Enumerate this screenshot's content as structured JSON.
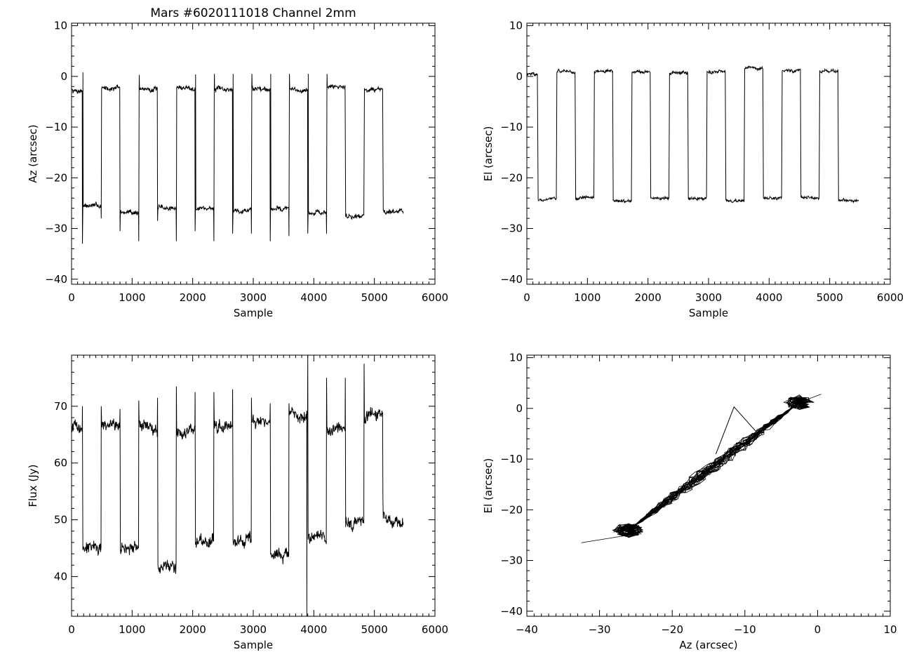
{
  "page": {
    "title": "Mars #6020111018 Channel 2mm"
  },
  "chart_data": [
    {
      "id": "az-vs-sample",
      "type": "line",
      "title": "Mars #6020111018 Channel 2mm",
      "xlabel": "Sample",
      "ylabel": "Az (arcsec)",
      "xlim": [
        0,
        6000
      ],
      "ylim": [
        -41,
        10.5
      ],
      "xticks": [
        0,
        1000,
        2000,
        3000,
        4000,
        5000,
        6000
      ],
      "yticks": [
        -40,
        -30,
        -20,
        -10,
        0,
        10
      ],
      "grid": false,
      "signal": {
        "start": 0,
        "end": 5480,
        "initial": -2.8,
        "transitions": [
          180,
          490,
          800,
          1110,
          1420,
          1730,
          2040,
          2350,
          2660,
          2970,
          3280,
          3590,
          3900,
          4210,
          4520,
          4830,
          5140
        ],
        "levels": [
          -25.5,
          -2.3,
          -26.8,
          -2.5,
          -26,
          -2.2,
          -26,
          -2.6,
          -26.3,
          -2.4,
          -26,
          -2.7,
          -27,
          -2,
          -27.5,
          -2.6,
          -26.5
        ],
        "spikes": [
          -33,
          0.8,
          -28,
          0,
          -30.5,
          0,
          -32.5,
          0.3,
          -28.5,
          0,
          -32.5,
          0,
          -30.5,
          0.4,
          -32.5,
          0.5,
          -31,
          0.5,
          -31,
          0.5,
          -32.5,
          0.5,
          -31.5,
          0.5,
          -31,
          0.5,
          -31,
          0.5
        ],
        "noise": 0.7
      }
    },
    {
      "id": "el-vs-sample",
      "type": "line",
      "title": "",
      "xlabel": "Sample",
      "ylabel": "El (arcsec)",
      "xlim": [
        0,
        6000
      ],
      "ylim": [
        -41,
        10.5
      ],
      "xticks": [
        0,
        1000,
        2000,
        3000,
        4000,
        5000,
        6000
      ],
      "yticks": [
        -40,
        -30,
        -20,
        -10,
        0,
        10
      ],
      "grid": false,
      "signal": {
        "start": 0,
        "end": 5480,
        "initial": 0.4,
        "transitions": [
          180,
          490,
          800,
          1110,
          1420,
          1730,
          2040,
          2350,
          2660,
          2970,
          3280,
          3590,
          3900,
          4210,
          4520,
          4830,
          5140
        ],
        "levels": [
          -24.2,
          1.0,
          -24.0,
          1.0,
          -24.6,
          1.0,
          -24.0,
          0.8,
          -24.0,
          0.8,
          -24.6,
          1.6,
          -24.0,
          1.2,
          -24.0,
          1.1,
          -24.6
        ],
        "noise": 0.45
      }
    },
    {
      "id": "flux-vs-sample",
      "type": "line",
      "title": "",
      "xlabel": "Sample",
      "ylabel": "Flux (Jy)",
      "xlim": [
        0,
        6000
      ],
      "ylim": [
        33,
        79
      ],
      "xticks": [
        0,
        1000,
        2000,
        3000,
        4000,
        5000,
        6000
      ],
      "yticks": [
        40,
        50,
        60,
        70
      ],
      "grid": false,
      "signal": {
        "start": 0,
        "end": 5480,
        "initial": 66,
        "transitions": [
          180,
          490,
          800,
          1110,
          1420,
          1730,
          2040,
          2350,
          2660,
          2970,
          3280,
          3590,
          3900,
          4210,
          4520,
          4830,
          5140
        ],
        "levels": [
          45,
          67,
          45,
          66,
          42,
          66,
          46.5,
          66.5,
          46,
          67.5,
          44,
          68.5,
          47,
          66,
          49.5,
          68,
          50
        ],
        "spikes": [
          70,
          70,
          69.5,
          71,
          71.5,
          73.5,
          72.5,
          72.5,
          73,
          71.5,
          70.5,
          70.5,
          79,
          75,
          75,
          77.5,
          54
        ],
        "dips": [
          {
            "x": 3885,
            "y": 33
          }
        ],
        "noise": 1.6
      }
    },
    {
      "id": "el-vs-az",
      "type": "line",
      "title": "",
      "xlabel": "Az (arcsec)",
      "ylabel": "El (arcsec)",
      "xlim": [
        -40,
        10
      ],
      "ylim": [
        -41,
        10.5
      ],
      "xticks": [
        -40,
        -30,
        -20,
        -10,
        0,
        10
      ],
      "yticks": [
        -40,
        -30,
        -20,
        -10,
        0,
        10
      ],
      "grid": false,
      "trace": {
        "start": [
          -26,
          -24
        ],
        "end": [
          -2.5,
          1.2
        ],
        "extreme_start": [
          -32.5,
          -26.5
        ],
        "extreme_end": [
          0.5,
          2.8
        ],
        "excursion": [
          [
            -14,
            -9
          ],
          [
            -11.5,
            0.3
          ],
          [
            -8.5,
            -4.5
          ]
        ],
        "strokes": 28
      }
    }
  ]
}
